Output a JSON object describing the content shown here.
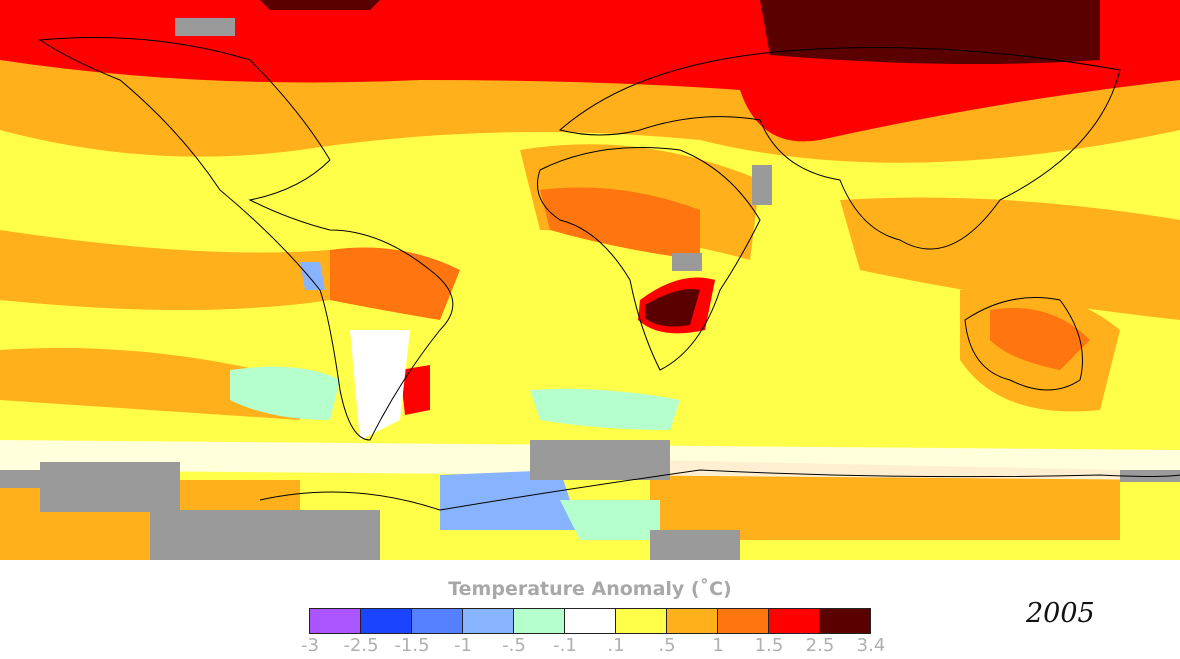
{
  "legend": {
    "title": "Temperature Anomaly (˚C)",
    "colors": [
      "#aa55ff",
      "#1a44ff",
      "#5580ff",
      "#88b4ff",
      "#b4ffcc",
      "#ffffff",
      "#ffff4a",
      "#ffb01a",
      "#ff7510",
      "#ff0000",
      "#5a0000"
    ],
    "ticks": [
      "-3",
      "-2.5",
      "-1.5",
      "-1",
      "-.5",
      "-.1",
      ".1",
      ".5",
      "1",
      "1.5",
      "2.5",
      "3.4"
    ]
  },
  "year": "2005",
  "no_data_color": "#9a9a9a"
}
